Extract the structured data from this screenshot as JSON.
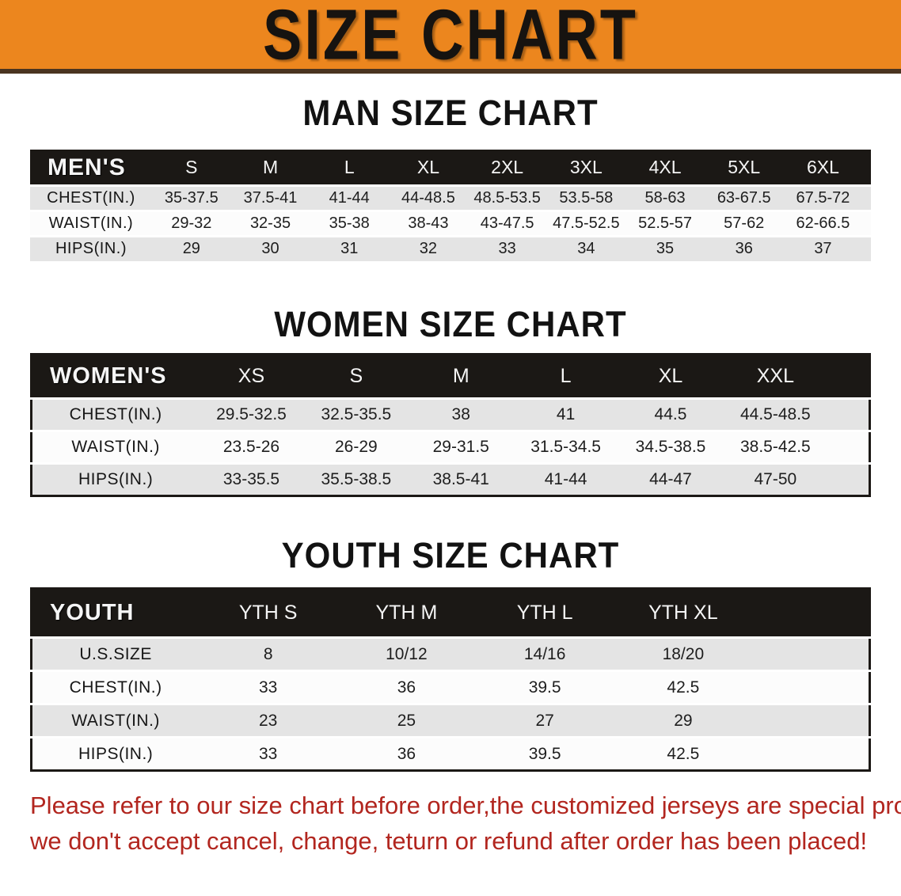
{
  "banner": {
    "title": "SIZE CHART"
  },
  "colors": {
    "banner_bg": "#EC861E",
    "header_black": "#1B1815",
    "stripe_gray": "#E4E4E4",
    "footer_red": "#B2261F"
  },
  "sections": [
    {
      "key": "men",
      "title": "MAN SIZE CHART",
      "label": "MEN'S",
      "columns": [
        "S",
        "M",
        "L",
        "XL",
        "2XL",
        "3XL",
        "4XL",
        "5XL",
        "6XL"
      ],
      "rows": [
        {
          "label": "CHEST(IN.)",
          "values": [
            "35-37.5",
            "37.5-41",
            "41-44",
            "44-48.5",
            "48.5-53.5",
            "53.5-58",
            "58-63",
            "63-67.5",
            "67.5-72"
          ]
        },
        {
          "label": "WAIST(IN.)",
          "values": [
            "29-32",
            "32-35",
            "35-38",
            "38-43",
            "43-47.5",
            "47.5-52.5",
            "52.5-57",
            "57-62",
            "62-66.5"
          ]
        },
        {
          "label": "HIPS(IN.)",
          "values": [
            "29",
            "30",
            "31",
            "32",
            "33",
            "34",
            "35",
            "36",
            "37"
          ]
        }
      ]
    },
    {
      "key": "women",
      "title": "WOMEN SIZE CHART",
      "label": "WOMEN'S",
      "columns": [
        "XS",
        "S",
        "M",
        "L",
        "XL",
        "XXL"
      ],
      "rows": [
        {
          "label": "CHEST(IN.)",
          "values": [
            "29.5-32.5",
            "32.5-35.5",
            "38",
            "41",
            "44.5",
            "44.5-48.5"
          ]
        },
        {
          "label": "WAIST(IN.)",
          "values": [
            "23.5-26",
            "26-29",
            "29-31.5",
            "31.5-34.5",
            "34.5-38.5",
            "38.5-42.5"
          ]
        },
        {
          "label": "HIPS(IN.)",
          "values": [
            "33-35.5",
            "35.5-38.5",
            "38.5-41",
            "41-44",
            "44-47",
            "47-50"
          ]
        }
      ]
    },
    {
      "key": "youth",
      "title": "YOUTH SIZE CHART",
      "label": "YOUTH",
      "columns": [
        "YTH S",
        "YTH M",
        "YTH L",
        "YTH XL"
      ],
      "rows": [
        {
          "label": "U.S.SIZE",
          "values": [
            "8",
            "10/12",
            "14/16",
            "18/20"
          ]
        },
        {
          "label": "CHEST(IN.)",
          "values": [
            "33",
            "36",
            "39.5",
            "42.5"
          ]
        },
        {
          "label": "WAIST(IN.)",
          "values": [
            "23",
            "25",
            "27",
            "29"
          ]
        },
        {
          "label": "HIPS(IN.)",
          "values": [
            "33",
            "36",
            "39.5",
            "42.5"
          ]
        }
      ]
    }
  ],
  "footer": {
    "line1": "Please refer to our size chart before order,the customized jerseys are special products,",
    "line2": "we don't accept cancel, change, teturn or refund after order has been placed!"
  }
}
